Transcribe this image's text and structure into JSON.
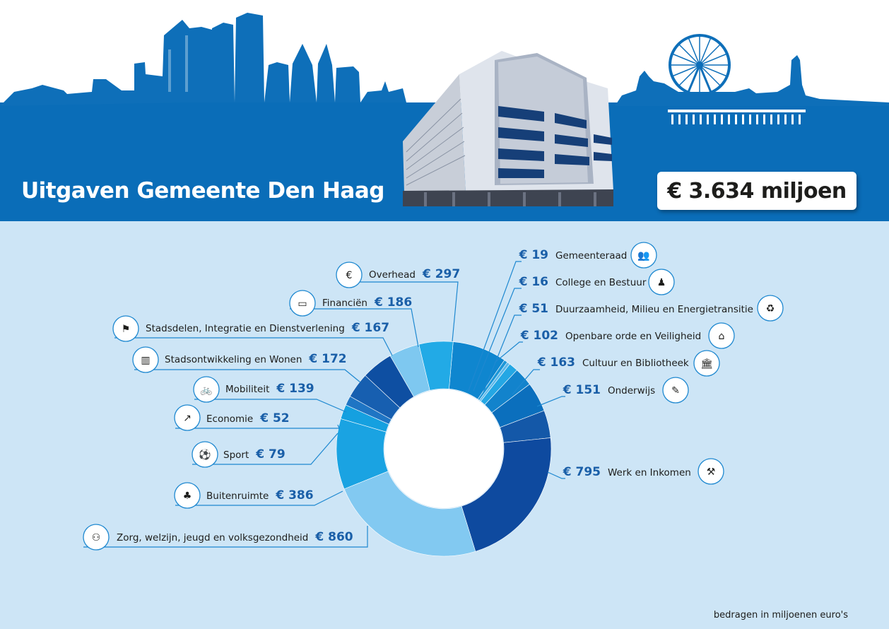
{
  "header": {
    "title": "Uitgaven Gemeente Den Haag",
    "total": "€ 3.634 miljoen",
    "colors": {
      "skyline": "#0e6fb9",
      "band": "#0a6db8"
    }
  },
  "footnote": "bedragen in miljoenen euro's",
  "chart_data": {
    "type": "donut",
    "title": "Uitgaven Gemeente Den Haag",
    "unit": "bedragen in miljoenen euro's",
    "total_label": "€ 3.634 miljoen",
    "slices": [
      {
        "name": "Overhead",
        "value": 297,
        "label": "€ 297",
        "color": "#0f86cf",
        "icon": "euro-roof-icon"
      },
      {
        "name": "Gemeenteraad",
        "value": 19,
        "label": "€ 19",
        "color": "#1e97d8",
        "icon": "council-icon"
      },
      {
        "name": "College en Bestuur",
        "value": 16,
        "label": "€ 16",
        "color": "#5db8ea",
        "icon": "board-icon"
      },
      {
        "name": "Duurzaamheid, Milieu en Energietransitie",
        "value": 51,
        "label": "€ 51",
        "color": "#24a7e4",
        "icon": "recycle-icon"
      },
      {
        "name": "Openbare orde en Veiligheid",
        "value": 102,
        "label": "€ 102",
        "color": "#1283cc",
        "icon": "safety-icon"
      },
      {
        "name": "Cultuur en Bibliotheek",
        "value": 163,
        "label": "€ 163",
        "color": "#0b6fbd",
        "icon": "museum-icon"
      },
      {
        "name": "Onderwijs",
        "value": 151,
        "label": "€ 151",
        "color": "#1458a8",
        "icon": "teacher-icon"
      },
      {
        "name": "Werk en Inkomen",
        "value": 795,
        "label": "€ 795",
        "color": "#0e4a9f",
        "icon": "worker-icon"
      },
      {
        "name": "Zorg, welzijn, jeugd en volksgezondheid",
        "value": 860,
        "label": "€ 860",
        "color": "#82c9f1",
        "icon": "family-icon"
      },
      {
        "name": "Buitenruimte",
        "value": 386,
        "label": "€ 386",
        "color": "#1aa3e2",
        "icon": "tree-bench-icon"
      },
      {
        "name": "Sport",
        "value": 79,
        "label": "€ 79",
        "color": "#15a0e0",
        "icon": "sport-icon"
      },
      {
        "name": "Economie",
        "value": 52,
        "label": "€ 52",
        "color": "#1f75c4",
        "icon": "growth-chart-icon"
      },
      {
        "name": "Mobiliteit",
        "value": 139,
        "label": "€ 139",
        "color": "#175fb0",
        "icon": "bus-bike-icon"
      },
      {
        "name": "Stadsontwikkeling en Wonen",
        "value": 172,
        "label": "€ 172",
        "color": "#0e4fa2",
        "icon": "buildings-icon"
      },
      {
        "name": "Stadsdelen, Integratie en Dienstverlening",
        "value": 167,
        "label": "€ 167",
        "color": "#7ec8f0",
        "icon": "signpost-icon"
      },
      {
        "name": "Financiën",
        "value": 186,
        "label": "€ 186",
        "color": "#22aae6",
        "icon": "money-icon"
      }
    ]
  }
}
